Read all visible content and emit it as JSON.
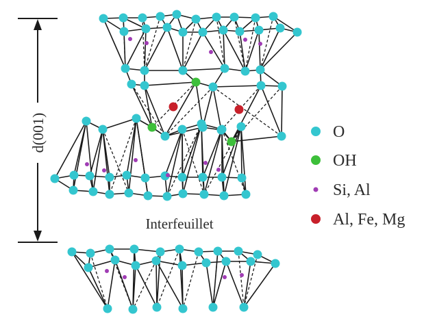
{
  "dimension_label": "d(001)",
  "interlayer_label": "Interfeuillet",
  "legend": [
    {
      "label": "O",
      "color": "#34c6cf",
      "symbol": "o-atom"
    },
    {
      "label": "OH",
      "color": "#3dbf3a",
      "symbol": "oh-group"
    },
    {
      "label": "Si, Al",
      "color": "#a03cb4",
      "symbol": "si-al-atom"
    },
    {
      "label": "Al, Fe, Mg",
      "color": "#c8202a",
      "symbol": "al-fe-mg-atom"
    }
  ],
  "colors": {
    "oxygen": "#34c6cf",
    "hydroxyl": "#3dbf3a",
    "tetrahedral": "#a03cb4",
    "octahedral": "#c8202a",
    "bond": "#1a1a1a"
  }
}
